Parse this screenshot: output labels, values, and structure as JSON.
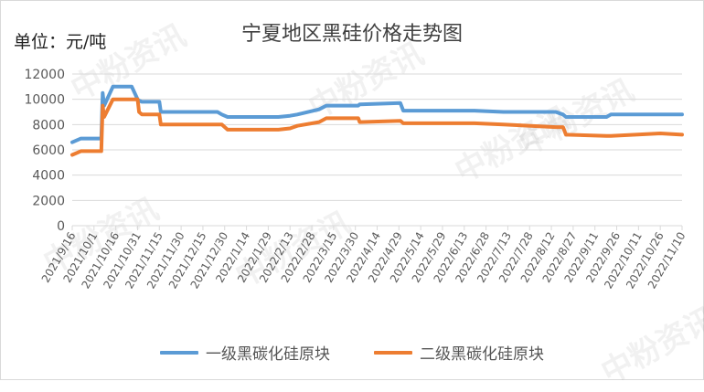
{
  "header": {
    "unit_label": "单位：元/吨",
    "title": "宁夏地区黑硅价格走势图"
  },
  "watermark": "中粉资讯",
  "colors": {
    "series1": "#5b9bd5",
    "series2": "#ed7d31",
    "grid": "#d9d9d9",
    "axis_text": "#595959"
  },
  "chart_data": {
    "type": "line",
    "title": "宁夏地区黑硅价格走势图",
    "ylabel": "单位：元/吨",
    "ylim": [
      0,
      12000
    ],
    "yticks": [
      0,
      2000,
      4000,
      6000,
      8000,
      10000,
      12000
    ],
    "grid": "horizontal",
    "legend_position": "bottom",
    "x_tick_labels": [
      "2021/9/16",
      "2021/10/1",
      "2021/10/16",
      "2021/10/31",
      "2021/11/15",
      "2021/11/30",
      "2021/12/15",
      "2021/12/30",
      "2022/1/14",
      "2022/1/29",
      "2022/2/13",
      "2022/2/28",
      "2022/3/15",
      "2022/3/30",
      "2022/4/14",
      "2022/4/29",
      "2022/5/14",
      "2022/5/29",
      "2022/6/13",
      "2022/6/28",
      "2022/7/13",
      "2022/7/28",
      "2022/8/12",
      "2022/8/27",
      "2022/9/11",
      "2022/9/26",
      "2022/10/11",
      "2022/10/26",
      "2022/11/10"
    ],
    "x": [
      "2021/9/16",
      "2021/9/22",
      "2021/10/1",
      "2021/10/6",
      "2021/10/7",
      "2021/10/8",
      "2021/10/14",
      "2021/10/27",
      "2021/10/31",
      "2021/11/1",
      "2021/11/3",
      "2021/11/15",
      "2021/11/16",
      "2021/12/25",
      "2021/12/28",
      "2022/1/1",
      "2022/2/5",
      "2022/2/13",
      "2022/2/18",
      "2022/3/5",
      "2022/3/10",
      "2022/4/1",
      "2022/4/2",
      "2022/4/30",
      "2022/5/2",
      "2022/6/20",
      "2022/7/10",
      "2022/8/15",
      "2022/8/20",
      "2022/8/22",
      "2022/9/19",
      "2022/9/22",
      "2022/10/26",
      "2022/11/10"
    ],
    "series": [
      {
        "name": "一级黑碳化硅原块",
        "values": [
          6600,
          6900,
          6900,
          6900,
          10500,
          9500,
          11000,
          11000,
          10000,
          9900,
          9800,
          9800,
          9000,
          9000,
          8800,
          8600,
          8600,
          8700,
          8800,
          9200,
          9500,
          9500,
          9600,
          9700,
          9100,
          9100,
          9000,
          9000,
          8800,
          8600,
          8600,
          8800,
          8800,
          8800
        ]
      },
      {
        "name": "二级黑碳化硅原块",
        "values": [
          5600,
          5900,
          5900,
          5900,
          9500,
          8600,
          10000,
          10000,
          10000,
          9000,
          8800,
          8800,
          8000,
          8000,
          8000,
          7600,
          7600,
          7700,
          7900,
          8200,
          8500,
          8500,
          8200,
          8300,
          8100,
          8100,
          8000,
          7800,
          7800,
          7200,
          7100,
          7100,
          7300,
          7200
        ]
      }
    ]
  }
}
